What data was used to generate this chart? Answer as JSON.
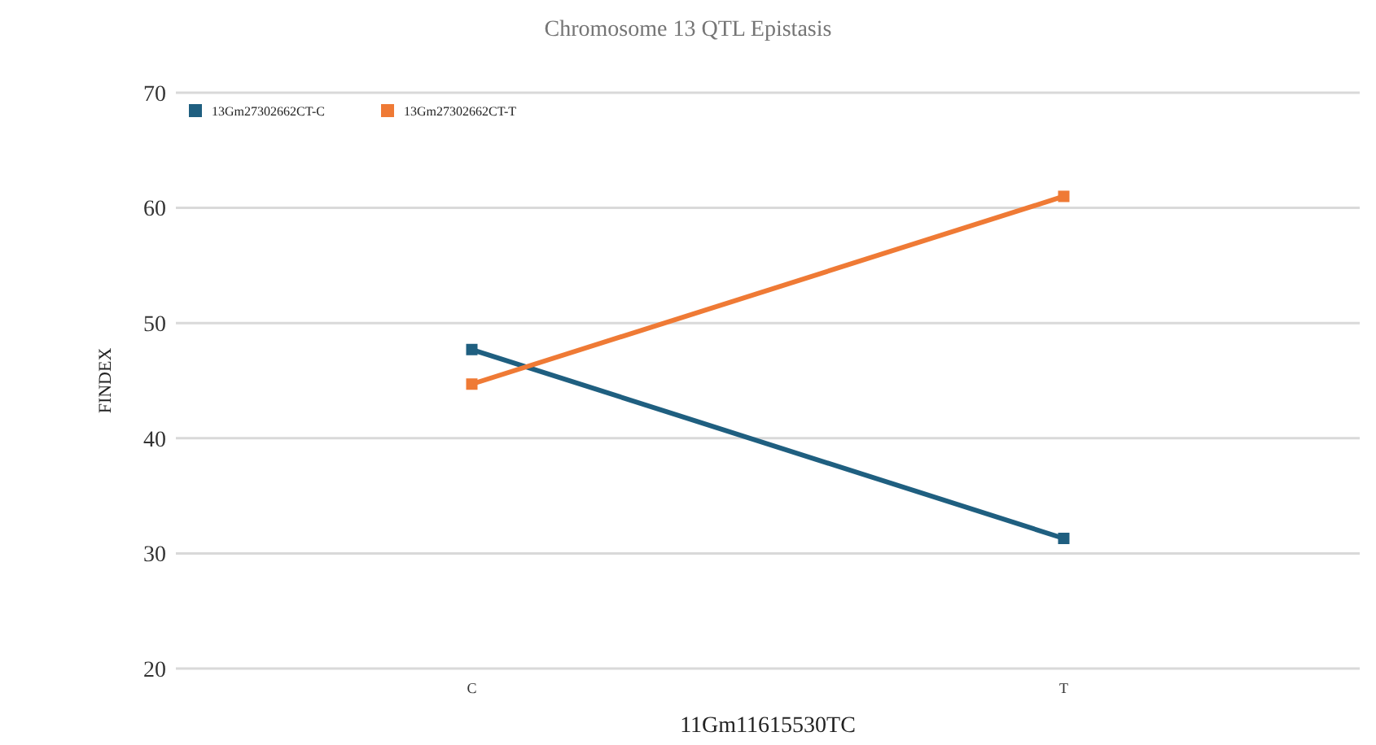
{
  "chart_data": {
    "type": "line",
    "title": "Chromosome 13 QTL Epistasis",
    "xlabel": "11Gm11615530TC",
    "ylabel": "FINDEX",
    "categories": [
      "C",
      "T"
    ],
    "series": [
      {
        "name": "13Gm27302662CT-C",
        "color": "#1f5f80",
        "values": [
          47.7,
          31.3
        ]
      },
      {
        "name": "13Gm27302662CT-T",
        "color": "#ef7a35",
        "values": [
          44.7,
          61
        ]
      }
    ],
    "ylim": [
      20,
      70
    ],
    "yticks": [
      20,
      30,
      40,
      50,
      60,
      70
    ],
    "grid": "y",
    "legend": "top left",
    "marker": "square",
    "line_style": "solid"
  }
}
